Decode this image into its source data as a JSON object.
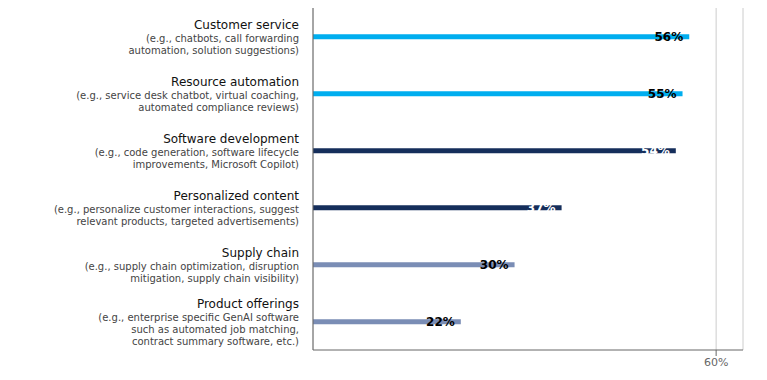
{
  "chart_data": {
    "type": "bar",
    "orientation": "horizontal",
    "categories": [
      "Customer service\n(e.g., chatbots, call forwarding\nautomation, solution suggestions)",
      "Resource automation\n(e.g., service desk chatbot, virtual coaching,\nautomated compliance reviews)",
      "Software development\n(e.g., code generation, software lifecycle\nimprovements, Microsoft Copilot)",
      "Personalized content\n(e.g., personalize customer interactions, suggest\nrelevant products, targeted advertisements)",
      "Supply chain\n(e.g., supply chain optimization, disruption\nmitigation, supply chain visibility)",
      "Product offerings\n(e.g., enterprise specific GenAI software\nsuch as automated job matching,\ncontract summary software, etc.)"
    ],
    "values": [
      56,
      55,
      54,
      37,
      30,
      22
    ],
    "value_labels": [
      "56%",
      "55%",
      "54%",
      "37%",
      "30%",
      "22%"
    ],
    "colors": [
      "#00AEEF",
      "#00AEEF",
      "#152E5B",
      "#152E5B",
      "#7A8DB5",
      "#7A8DB5"
    ],
    "xlim": [
      0,
      64
    ],
    "xticks": [
      {
        "value": 60,
        "label": "60%"
      }
    ],
    "grid": true,
    "data_labels": true
  }
}
